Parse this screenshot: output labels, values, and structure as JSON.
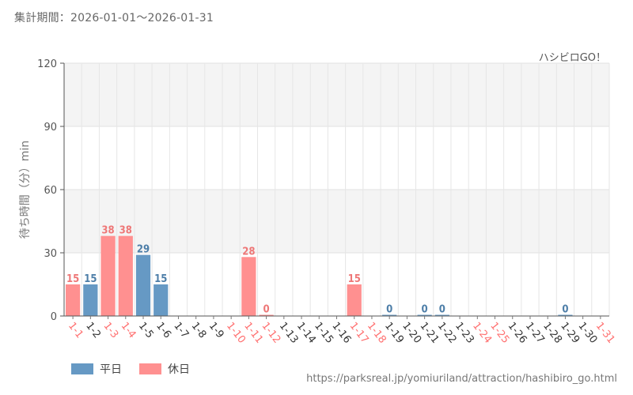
{
  "period_label": "集計期間：2026-01-01～2026-01-31",
  "brand": "ハシビロGO！",
  "source_url": "https://parksreal.jp/yomiuriland/attraction/hashibiro_go.html",
  "legend": [
    {
      "label": "平日",
      "color": "#6699c4"
    },
    {
      "label": "休日",
      "color": "#ff9090"
    }
  ],
  "colors": {
    "weekday_bar": "#6699c4",
    "holiday_bar": "#ff9090",
    "weekday_text": "#4d7ea8",
    "holiday_text": "#ee7777",
    "weekday_axis": "#333333",
    "holiday_axis": "#ff6f6f"
  },
  "chart_data": {
    "type": "bar",
    "ylabel": "待ち時間（分）min",
    "ylim": [
      0,
      120
    ],
    "yticks": [
      0,
      30,
      60,
      90,
      120
    ],
    "grid": true,
    "legend_position": "bottom-left",
    "categories": [
      "1-1",
      "1-2",
      "1-3",
      "1-4",
      "1-5",
      "1-6",
      "1-7",
      "1-8",
      "1-9",
      "1-10",
      "1-11",
      "1-12",
      "1-13",
      "1-14",
      "1-15",
      "1-16",
      "1-17",
      "1-18",
      "1-19",
      "1-20",
      "1-21",
      "1-22",
      "1-23",
      "1-24",
      "1-25",
      "1-26",
      "1-27",
      "1-28",
      "1-29",
      "1-30",
      "1-31"
    ],
    "day_type": [
      "holiday",
      "weekday",
      "holiday",
      "holiday",
      "weekday",
      "weekday",
      "weekday",
      "weekday",
      "weekday",
      "holiday",
      "holiday",
      "holiday",
      "weekday",
      "weekday",
      "weekday",
      "weekday",
      "holiday",
      "holiday",
      "weekday",
      "weekday",
      "weekday",
      "weekday",
      "weekday",
      "holiday",
      "holiday",
      "weekday",
      "weekday",
      "weekday",
      "weekday",
      "weekday",
      "holiday"
    ],
    "values": [
      15,
      15,
      38,
      38,
      29,
      15,
      null,
      null,
      null,
      null,
      28,
      0,
      null,
      null,
      null,
      null,
      15,
      null,
      0,
      null,
      0,
      0,
      null,
      null,
      null,
      null,
      null,
      null,
      0,
      null,
      null
    ]
  }
}
